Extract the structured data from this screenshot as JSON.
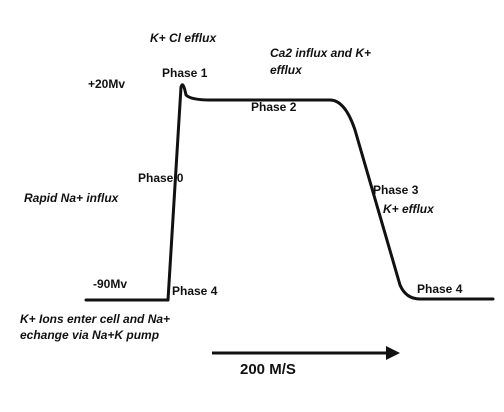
{
  "colors": {
    "background": "#ffffff",
    "trace": "#111111",
    "text": "#111111"
  },
  "labels": {
    "k_cl_efflux": "K+ Cl efflux",
    "ca_influx_line1": "Ca2 influx and K+",
    "ca_influx_line2": "efflux",
    "plus_20mv": "+20Mv",
    "phase1": "Phase 1",
    "phase2": "Phase 2",
    "phase0": "Phase 0",
    "rapid_na_influx": "Rapid Na+ influx",
    "phase3": "Phase 3",
    "k_efflux": "K+ efflux",
    "minus_90mv": "-90Mv",
    "phase4_left": "Phase 4",
    "phase4_right": "Phase 4",
    "k_ions_line1": "K+ Ions enter cell and Na+",
    "k_ions_line2": "echange via Na+K pump",
    "time_scale": "200 M/S"
  }
}
